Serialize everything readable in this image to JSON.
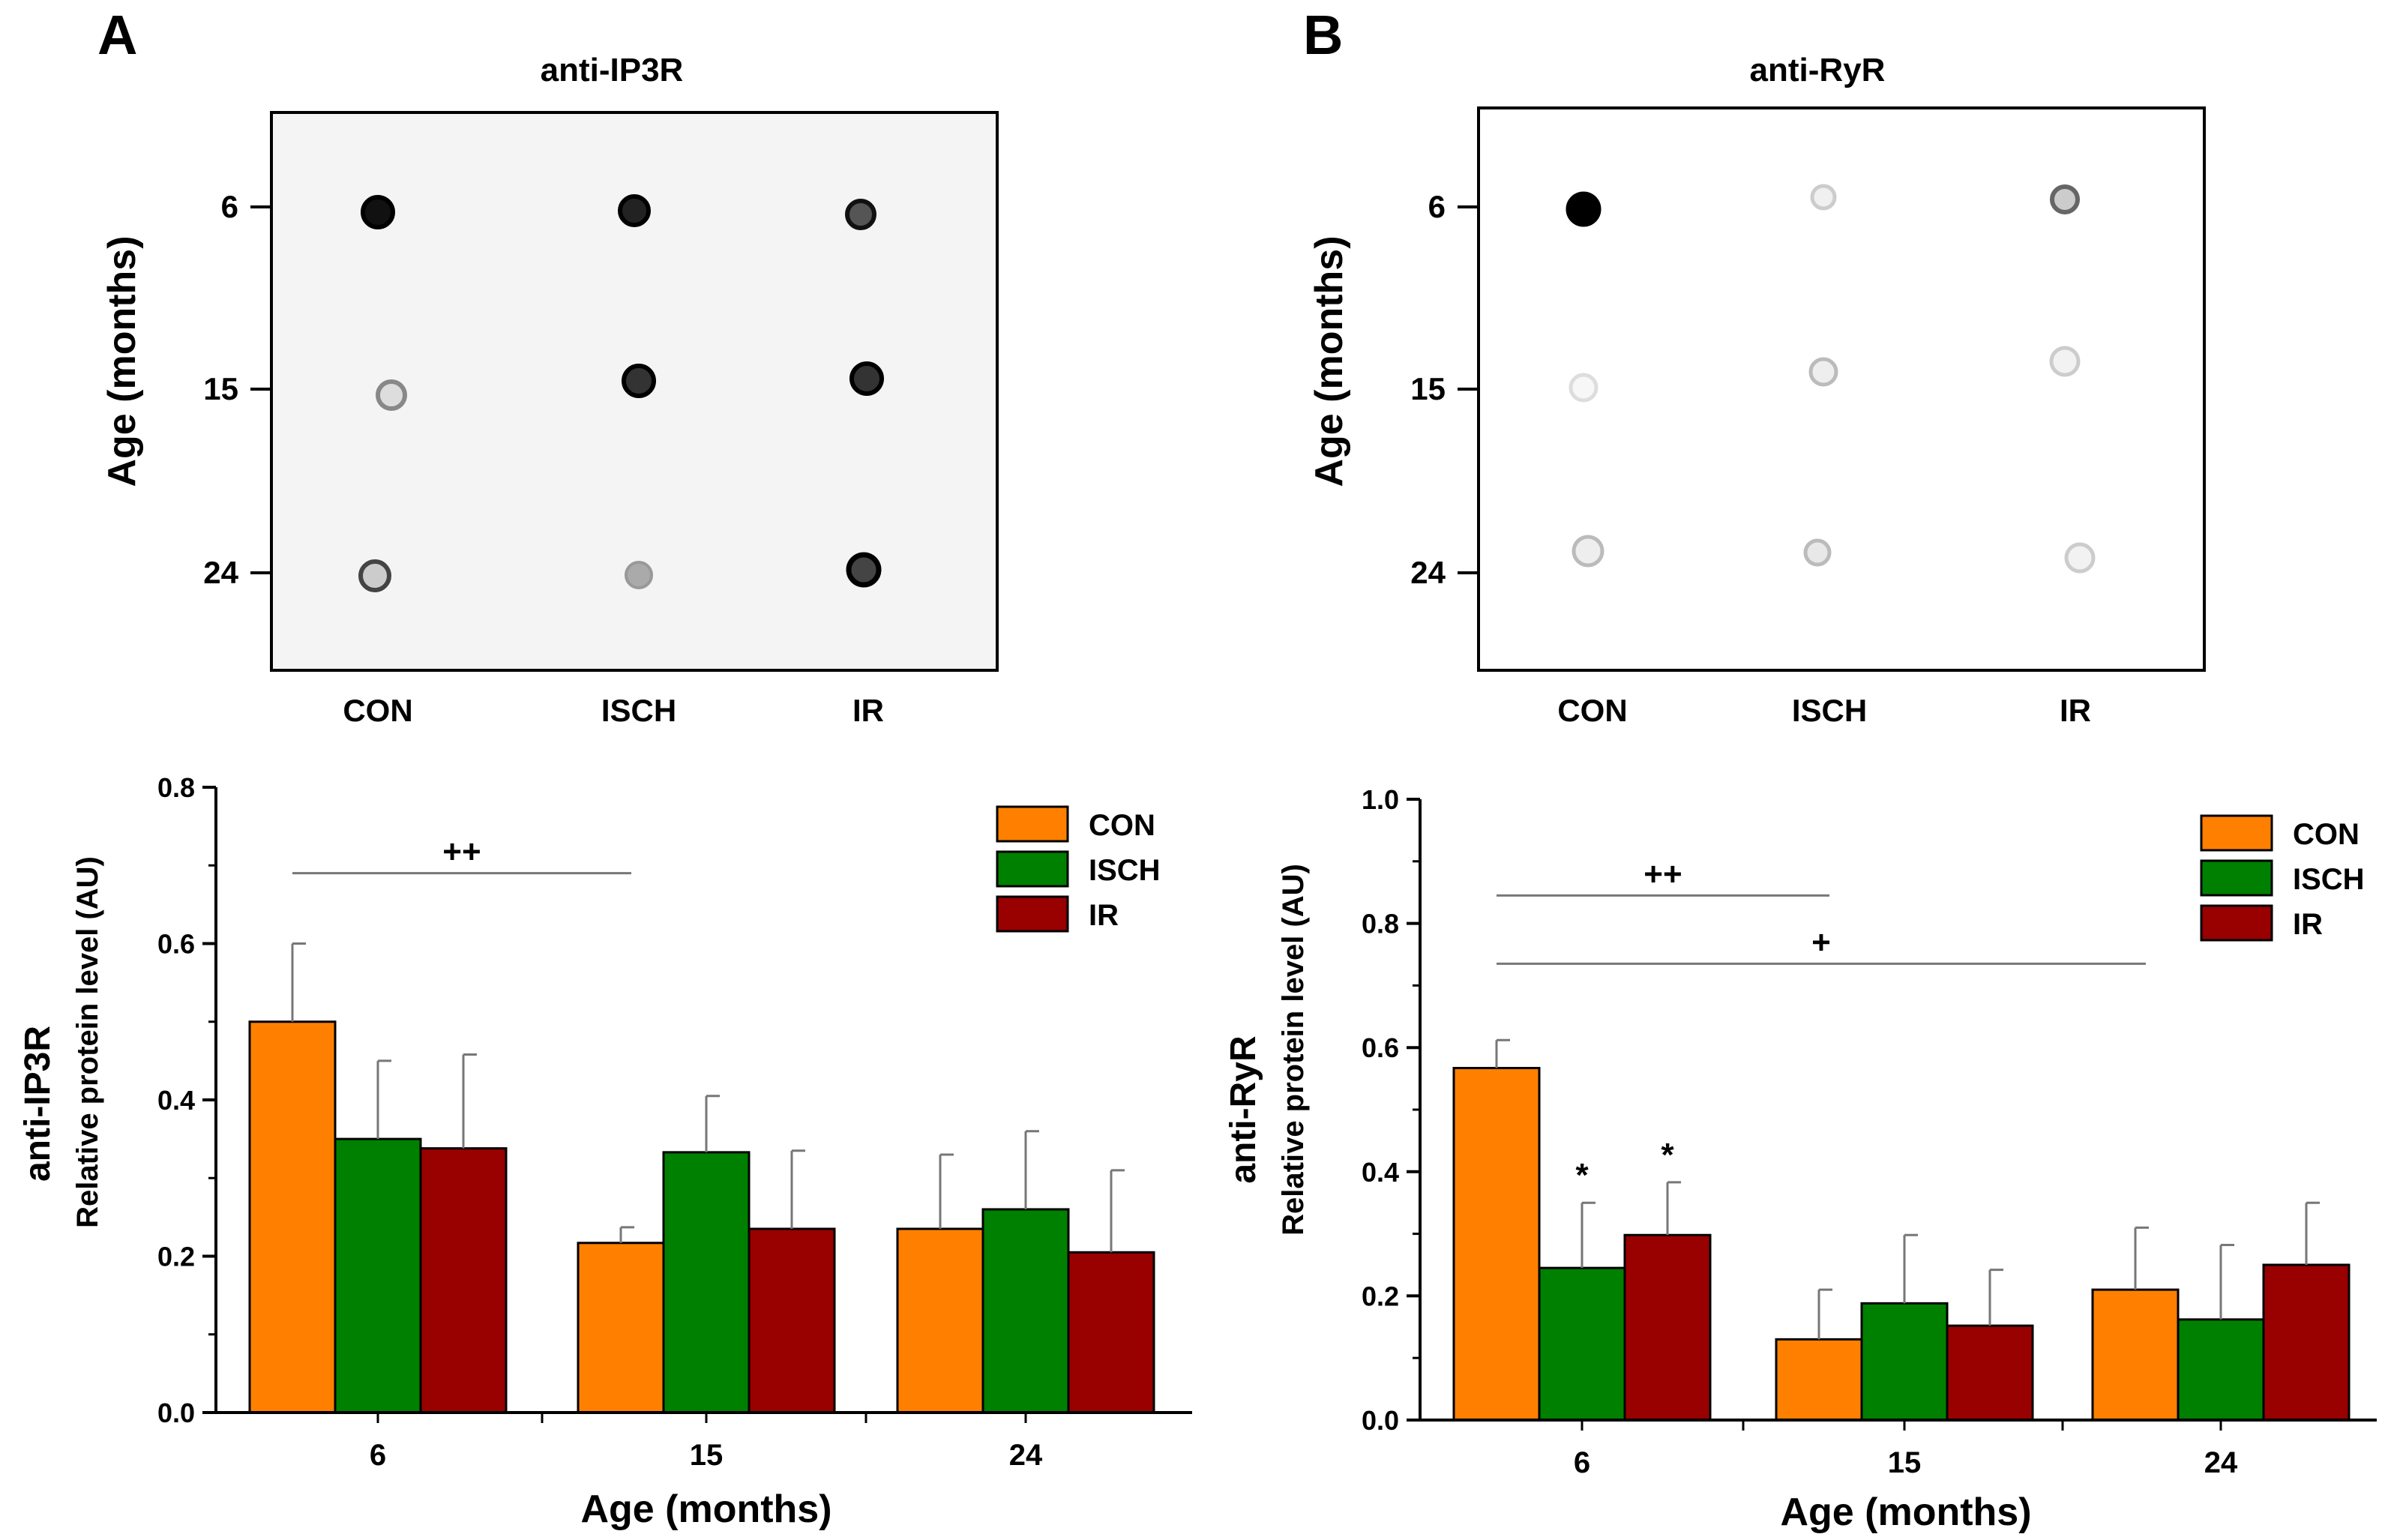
{
  "panels": [
    {
      "letter": "A",
      "blot": {
        "title": "anti-IP3R",
        "ylabel": "Age (months)",
        "rows": [
          "6",
          "15",
          "24"
        ],
        "columns": [
          "CON",
          "ISCH",
          "IR"
        ],
        "dot_intensity": [
          [
            0.95,
            0.85,
            0.7
          ],
          [
            0.25,
            0.85,
            0.85
          ],
          [
            0.45,
            0.3,
            0.9
          ]
        ]
      },
      "chart_data": {
        "type": "bar",
        "title": "",
        "ylabel": "anti-IP3R",
        "ylabel_sub": "Relative protein level (AU)",
        "xlabel": "Age (months)",
        "categories": [
          "6",
          "15",
          "24"
        ],
        "ylim": [
          0,
          0.8
        ],
        "yticks": [
          "0.0",
          "0.2",
          "0.4",
          "0.6",
          "0.8"
        ],
        "series": [
          {
            "name": "CON",
            "color": "#ff8000",
            "values": [
              0.5,
              0.217,
              0.235
            ],
            "errors": [
              0.1,
              0.02,
              0.095
            ]
          },
          {
            "name": "ISCH",
            "color": "#008000",
            "values": [
              0.35,
              0.333,
              0.26
            ],
            "errors": [
              0.1,
              0.072,
              0.1
            ]
          },
          {
            "name": "IR",
            "color": "#990000",
            "values": [
              0.338,
              0.235,
              0.205
            ],
            "errors": [
              0.12,
              0.1,
              0.105
            ]
          }
        ],
        "annotations": [
          {
            "text": "++",
            "from_category": "6",
            "to_category": "15",
            "y": 0.69
          }
        ],
        "stars": []
      }
    },
    {
      "letter": "B",
      "blot": {
        "title": "anti-RyR",
        "ylabel": "Age (months)",
        "rows": [
          "6",
          "15",
          "24"
        ],
        "columns": [
          "CON",
          "ISCH",
          "IR"
        ],
        "dot_intensity": [
          [
            1.0,
            0.15,
            0.45
          ],
          [
            0.1,
            0.2,
            0.15
          ],
          [
            0.2,
            0.2,
            0.15
          ]
        ]
      },
      "chart_data": {
        "type": "bar",
        "title": "",
        "ylabel": "anti-RyR",
        "ylabel_sub": "Relative protein level (AU)",
        "xlabel": "Age (months)",
        "categories": [
          "6",
          "15",
          "24"
        ],
        "ylim": [
          0,
          1.0
        ],
        "yticks": [
          "0.0",
          "0.2",
          "0.4",
          "0.6",
          "0.8",
          "1.0"
        ],
        "series": [
          {
            "name": "CON",
            "color": "#ff8000",
            "values": [
              0.567,
              0.13,
              0.21
            ],
            "errors": [
              0.045,
              0.08,
              0.1
            ]
          },
          {
            "name": "ISCH",
            "color": "#008000",
            "values": [
              0.245,
              0.188,
              0.162
            ],
            "errors": [
              0.105,
              0.11,
              0.12
            ]
          },
          {
            "name": "IR",
            "color": "#990000",
            "values": [
              0.298,
              0.152,
              0.25
            ],
            "errors": [
              0.085,
              0.09,
              0.1
            ]
          }
        ],
        "annotations": [
          {
            "text": "++",
            "from_category": "6",
            "to_category": "15",
            "y": 0.845
          },
          {
            "text": "+",
            "from_category": "6",
            "to_category": "24",
            "y": 0.735
          }
        ],
        "stars": [
          {
            "text": "*",
            "category": "6",
            "series": "ISCH"
          },
          {
            "text": "*",
            "category": "6",
            "series": "IR"
          }
        ]
      }
    }
  ]
}
